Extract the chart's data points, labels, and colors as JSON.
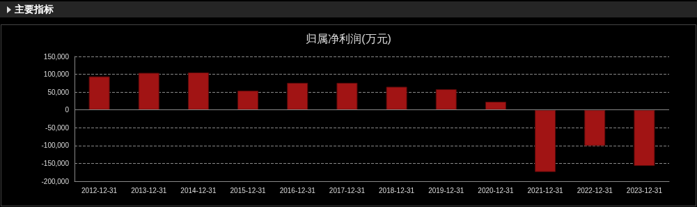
{
  "chart_data": {
    "type": "bar",
    "title": "归属净利润(万元)",
    "annotations": [
      "主要指标"
    ],
    "categories": [
      "2012-12-31",
      "2013-12-31",
      "2014-12-31",
      "2015-12-31",
      "2016-12-31",
      "2017-12-31",
      "2018-12-31",
      "2019-12-31",
      "2020-12-31",
      "2021-12-31",
      "2022-12-31",
      "2023-12-31"
    ],
    "values": [
      94000,
      104000,
      105000,
      54000,
      76000,
      76000,
      65000,
      58000,
      23000,
      -174000,
      -101000,
      -157000
    ],
    "color": "#a11414",
    "ylim": [
      -200000,
      150000
    ],
    "yticks": [
      {
        "value": -200000,
        "label": "-200,000"
      },
      {
        "value": -150000,
        "label": "-150,000"
      },
      {
        "value": -100000,
        "label": "-100,000"
      },
      {
        "value": -50000,
        "label": "-50,000"
      },
      0,
      {
        "value": 50000,
        "label": "50,000"
      },
      {
        "value": 100000,
        "label": "100,000"
      },
      {
        "value": 150000,
        "label": "150,000"
      }
    ],
    "grid": "y"
  }
}
